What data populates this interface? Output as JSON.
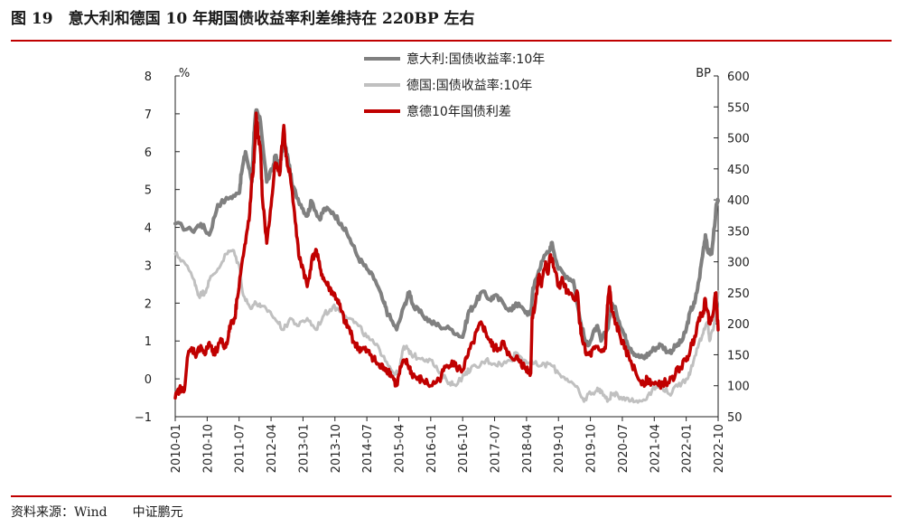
{
  "figure": {
    "title": "图 19　意大利和德国 10 年期国债收益率利差维持在 220BP 左右",
    "source": "资料来源：Wind　　中证鹏元"
  },
  "chart_data": {
    "type": "line",
    "title": "意大利和德国 10 年期国债收益率利差维持在 220BP 左右",
    "left_axis": {
      "unit": "%",
      "range": [
        -1,
        8
      ],
      "ticks": [
        "−1",
        "0",
        "1",
        "2",
        "3",
        "4",
        "5",
        "6",
        "7",
        "8"
      ]
    },
    "right_axis": {
      "unit": "BP",
      "range": [
        50,
        600
      ],
      "ticks": [
        "50",
        "100",
        "150",
        "200",
        "250",
        "300",
        "350",
        "400",
        "450",
        "500",
        "550",
        "600"
      ]
    },
    "x_ticks": [
      "2010-01",
      "2010-10",
      "2011-07",
      "2012-04",
      "2013-01",
      "2013-10",
      "2014-07",
      "2015-04",
      "2016-01",
      "2016-10",
      "2017-07",
      "2018-04",
      "2019-01",
      "2019-10",
      "2020-07",
      "2021-04",
      "2022-01",
      "2022-10"
    ],
    "x_range": [
      2010.0,
      2022.75
    ],
    "legend_position": "top-center",
    "series": [
      {
        "name": "意大利:国债收益率:10年",
        "axis": "left",
        "color": "#808080",
        "points": [
          [
            2010.0,
            4.1
          ],
          [
            2010.4,
            3.9
          ],
          [
            2010.6,
            4.1
          ],
          [
            2010.8,
            3.8
          ],
          [
            2011.0,
            4.6
          ],
          [
            2011.3,
            4.8
          ],
          [
            2011.5,
            4.9
          ],
          [
            2011.55,
            5.4
          ],
          [
            2011.65,
            6.0
          ],
          [
            2011.8,
            5.2
          ],
          [
            2011.85,
            6.5
          ],
          [
            2011.9,
            7.1
          ],
          [
            2012.0,
            6.8
          ],
          [
            2012.15,
            5.2
          ],
          [
            2012.3,
            5.6
          ],
          [
            2012.35,
            5.9
          ],
          [
            2012.45,
            5.6
          ],
          [
            2012.55,
            6.3
          ],
          [
            2012.65,
            5.8
          ],
          [
            2012.75,
            5.1
          ],
          [
            2012.95,
            4.6
          ],
          [
            2013.1,
            4.3
          ],
          [
            2013.2,
            4.7
          ],
          [
            2013.4,
            4.2
          ],
          [
            2013.5,
            4.5
          ],
          [
            2013.7,
            4.4
          ],
          [
            2013.9,
            4.1
          ],
          [
            2014.1,
            3.7
          ],
          [
            2014.3,
            3.2
          ],
          [
            2014.5,
            2.9
          ],
          [
            2014.7,
            2.6
          ],
          [
            2014.9,
            2.0
          ],
          [
            2015.0,
            1.7
          ],
          [
            2015.2,
            1.3
          ],
          [
            2015.4,
            2.0
          ],
          [
            2015.5,
            2.3
          ],
          [
            2015.6,
            1.9
          ],
          [
            2015.8,
            1.7
          ],
          [
            2016.0,
            1.5
          ],
          [
            2016.2,
            1.4
          ],
          [
            2016.5,
            1.3
          ],
          [
            2016.75,
            1.1
          ],
          [
            2016.9,
            1.8
          ],
          [
            2017.0,
            1.9
          ],
          [
            2017.2,
            2.3
          ],
          [
            2017.4,
            2.1
          ],
          [
            2017.5,
            2.2
          ],
          [
            2017.7,
            2.0
          ],
          [
            2017.9,
            1.8
          ],
          [
            2018.0,
            2.0
          ],
          [
            2018.2,
            1.8
          ],
          [
            2018.35,
            1.7
          ],
          [
            2018.4,
            2.4
          ],
          [
            2018.5,
            2.7
          ],
          [
            2018.6,
            3.1
          ],
          [
            2018.8,
            3.4
          ],
          [
            2018.85,
            3.6
          ],
          [
            2019.0,
            2.9
          ],
          [
            2019.2,
            2.7
          ],
          [
            2019.35,
            2.6
          ],
          [
            2019.5,
            1.6
          ],
          [
            2019.65,
            0.9
          ],
          [
            2019.75,
            1.0
          ],
          [
            2019.9,
            1.4
          ],
          [
            2020.0,
            1.0
          ],
          [
            2020.15,
            1.3
          ],
          [
            2020.25,
            2.0
          ],
          [
            2020.35,
            1.8
          ],
          [
            2020.5,
            1.3
          ],
          [
            2020.6,
            1.0
          ],
          [
            2020.7,
            0.8
          ],
          [
            2020.85,
            0.6
          ],
          [
            2021.0,
            0.55
          ],
          [
            2021.1,
            0.65
          ],
          [
            2021.25,
            0.8
          ],
          [
            2021.4,
            0.9
          ],
          [
            2021.6,
            0.7
          ],
          [
            2021.75,
            0.85
          ],
          [
            2021.9,
            1.0
          ],
          [
            2022.0,
            1.3
          ],
          [
            2022.1,
            1.8
          ],
          [
            2022.2,
            2.0
          ],
          [
            2022.3,
            2.6
          ],
          [
            2022.4,
            3.4
          ],
          [
            2022.45,
            3.8
          ],
          [
            2022.5,
            3.4
          ],
          [
            2022.6,
            3.3
          ],
          [
            2022.7,
            4.5
          ],
          [
            2022.75,
            4.7
          ]
        ]
      },
      {
        "name": "德国:国债收益率:10年",
        "axis": "left",
        "color": "#c0c0c0",
        "points": [
          [
            2010.0,
            3.3
          ],
          [
            2010.2,
            3.1
          ],
          [
            2010.45,
            2.6
          ],
          [
            2010.55,
            2.2
          ],
          [
            2010.7,
            2.3
          ],
          [
            2010.8,
            2.6
          ],
          [
            2011.0,
            2.9
          ],
          [
            2011.2,
            3.3
          ],
          [
            2011.35,
            3.4
          ],
          [
            2011.5,
            3.0
          ],
          [
            2011.6,
            2.2
          ],
          [
            2011.75,
            1.9
          ],
          [
            2011.9,
            2.0
          ],
          [
            2012.0,
            1.9
          ],
          [
            2012.2,
            1.8
          ],
          [
            2012.4,
            1.5
          ],
          [
            2012.55,
            1.3
          ],
          [
            2012.7,
            1.6
          ],
          [
            2012.9,
            1.4
          ],
          [
            2013.1,
            1.6
          ],
          [
            2013.3,
            1.3
          ],
          [
            2013.5,
            1.7
          ],
          [
            2013.7,
            1.9
          ],
          [
            2013.9,
            1.8
          ],
          [
            2014.1,
            1.6
          ],
          [
            2014.3,
            1.4
          ],
          [
            2014.5,
            1.1
          ],
          [
            2014.7,
            0.9
          ],
          [
            2014.9,
            0.6
          ],
          [
            2015.1,
            0.2
          ],
          [
            2015.25,
            0.1
          ],
          [
            2015.35,
            0.8
          ],
          [
            2015.45,
            0.8
          ],
          [
            2015.6,
            0.6
          ],
          [
            2015.8,
            0.55
          ],
          [
            2016.0,
            0.5
          ],
          [
            2016.2,
            0.15
          ],
          [
            2016.45,
            -0.1
          ],
          [
            2016.55,
            -0.15
          ],
          [
            2016.8,
            0.1
          ],
          [
            2016.95,
            0.3
          ],
          [
            2017.1,
            0.3
          ],
          [
            2017.3,
            0.5
          ],
          [
            2017.5,
            0.4
          ],
          [
            2017.7,
            0.4
          ],
          [
            2017.9,
            0.5
          ],
          [
            2018.0,
            0.7
          ],
          [
            2018.2,
            0.5
          ],
          [
            2018.4,
            0.4
          ],
          [
            2018.6,
            0.35
          ],
          [
            2018.8,
            0.4
          ],
          [
            2019.0,
            0.15
          ],
          [
            2019.2,
            0.0
          ],
          [
            2019.4,
            -0.2
          ],
          [
            2019.6,
            -0.6
          ],
          [
            2019.7,
            -0.4
          ],
          [
            2019.9,
            -0.3
          ],
          [
            2020.0,
            -0.3
          ],
          [
            2020.15,
            -0.6
          ],
          [
            2020.25,
            -0.4
          ],
          [
            2020.4,
            -0.45
          ],
          [
            2020.6,
            -0.5
          ],
          [
            2020.8,
            -0.6
          ],
          [
            2021.0,
            -0.55
          ],
          [
            2021.2,
            -0.3
          ],
          [
            2021.4,
            -0.15
          ],
          [
            2021.6,
            -0.4
          ],
          [
            2021.8,
            -0.2
          ],
          [
            2022.0,
            0.0
          ],
          [
            2022.1,
            0.2
          ],
          [
            2022.25,
            0.8
          ],
          [
            2022.4,
            1.2
          ],
          [
            2022.5,
            1.5
          ],
          [
            2022.55,
            1.0
          ],
          [
            2022.65,
            1.4
          ],
          [
            2022.75,
            2.3
          ]
        ]
      },
      {
        "name": "意德10年国债利差",
        "axis": "right",
        "color": "#c00000",
        "points": [
          [
            2010.0,
            80
          ],
          [
            2010.1,
            95
          ],
          [
            2010.2,
            90
          ],
          [
            2010.3,
            150
          ],
          [
            2010.4,
            160
          ],
          [
            2010.5,
            150
          ],
          [
            2010.6,
            165
          ],
          [
            2010.7,
            150
          ],
          [
            2010.8,
            170
          ],
          [
            2010.9,
            150
          ],
          [
            2011.0,
            160
          ],
          [
            2011.1,
            175
          ],
          [
            2011.15,
            160
          ],
          [
            2011.25,
            180
          ],
          [
            2011.3,
            200
          ],
          [
            2011.4,
            210
          ],
          [
            2011.45,
            240
          ],
          [
            2011.55,
            290
          ],
          [
            2011.65,
            330
          ],
          [
            2011.75,
            380
          ],
          [
            2011.8,
            430
          ],
          [
            2011.85,
            460
          ],
          [
            2011.9,
            540
          ],
          [
            2011.95,
            500
          ],
          [
            2012.0,
            480
          ],
          [
            2012.05,
            400
          ],
          [
            2012.15,
            330
          ],
          [
            2012.25,
            390
          ],
          [
            2012.35,
            460
          ],
          [
            2012.45,
            440
          ],
          [
            2012.55,
            520
          ],
          [
            2012.6,
            470
          ],
          [
            2012.7,
            440
          ],
          [
            2012.8,
            380
          ],
          [
            2012.9,
            310
          ],
          [
            2013.0,
            290
          ],
          [
            2013.1,
            260
          ],
          [
            2013.2,
            300
          ],
          [
            2013.3,
            320
          ],
          [
            2013.4,
            290
          ],
          [
            2013.5,
            270
          ],
          [
            2013.6,
            260
          ],
          [
            2013.7,
            250
          ],
          [
            2013.8,
            240
          ],
          [
            2013.9,
            220
          ],
          [
            2014.0,
            200
          ],
          [
            2014.1,
            190
          ],
          [
            2014.2,
            170
          ],
          [
            2014.3,
            160
          ],
          [
            2014.4,
            160
          ],
          [
            2014.5,
            155
          ],
          [
            2014.6,
            150
          ],
          [
            2014.7,
            140
          ],
          [
            2014.8,
            130
          ],
          [
            2014.9,
            130
          ],
          [
            2015.0,
            125
          ],
          [
            2015.1,
            115
          ],
          [
            2015.2,
            100
          ],
          [
            2015.3,
            130
          ],
          [
            2015.4,
            140
          ],
          [
            2015.5,
            130
          ],
          [
            2015.55,
            120
          ],
          [
            2015.7,
            110
          ],
          [
            2015.8,
            110
          ],
          [
            2016.0,
            100
          ],
          [
            2016.2,
            110
          ],
          [
            2016.35,
            130
          ],
          [
            2016.5,
            140
          ],
          [
            2016.6,
            130
          ],
          [
            2016.75,
            125
          ],
          [
            2016.85,
            145
          ],
          [
            2017.0,
            170
          ],
          [
            2017.1,
            190
          ],
          [
            2017.2,
            200
          ],
          [
            2017.3,
            185
          ],
          [
            2017.4,
            170
          ],
          [
            2017.5,
            160
          ],
          [
            2017.6,
            160
          ],
          [
            2017.7,
            170
          ],
          [
            2017.8,
            150
          ],
          [
            2018.0,
            145
          ],
          [
            2018.1,
            140
          ],
          [
            2018.2,
            130
          ],
          [
            2018.3,
            125
          ],
          [
            2018.35,
            120
          ],
          [
            2018.38,
            210
          ],
          [
            2018.45,
            230
          ],
          [
            2018.5,
            260
          ],
          [
            2018.55,
            280
          ],
          [
            2018.6,
            260
          ],
          [
            2018.7,
            300
          ],
          [
            2018.75,
            280
          ],
          [
            2018.8,
            310
          ],
          [
            2018.9,
            290
          ],
          [
            2019.0,
            260
          ],
          [
            2019.1,
            270
          ],
          [
            2019.2,
            250
          ],
          [
            2019.35,
            240
          ],
          [
            2019.45,
            250
          ],
          [
            2019.5,
            200
          ],
          [
            2019.55,
            180
          ],
          [
            2019.65,
            150
          ],
          [
            2019.75,
            150
          ],
          [
            2019.85,
            160
          ],
          [
            2020.0,
            155
          ],
          [
            2020.1,
            160
          ],
          [
            2020.15,
            230
          ],
          [
            2020.2,
            260
          ],
          [
            2020.25,
            220
          ],
          [
            2020.35,
            200
          ],
          [
            2020.45,
            180
          ],
          [
            2020.55,
            160
          ],
          [
            2020.7,
            140
          ],
          [
            2020.85,
            115
          ],
          [
            2021.0,
            105
          ],
          [
            2021.1,
            110
          ],
          [
            2021.2,
            105
          ],
          [
            2021.35,
            100
          ],
          [
            2021.45,
            105
          ],
          [
            2021.6,
            105
          ],
          [
            2021.75,
            120
          ],
          [
            2021.85,
            130
          ],
          [
            2022.0,
            140
          ],
          [
            2022.1,
            160
          ],
          [
            2022.2,
            180
          ],
          [
            2022.3,
            210
          ],
          [
            2022.4,
            220
          ],
          [
            2022.45,
            240
          ],
          [
            2022.5,
            220
          ],
          [
            2022.55,
            200
          ],
          [
            2022.6,
            210
          ],
          [
            2022.7,
            250
          ],
          [
            2022.75,
            190
          ]
        ]
      }
    ]
  }
}
